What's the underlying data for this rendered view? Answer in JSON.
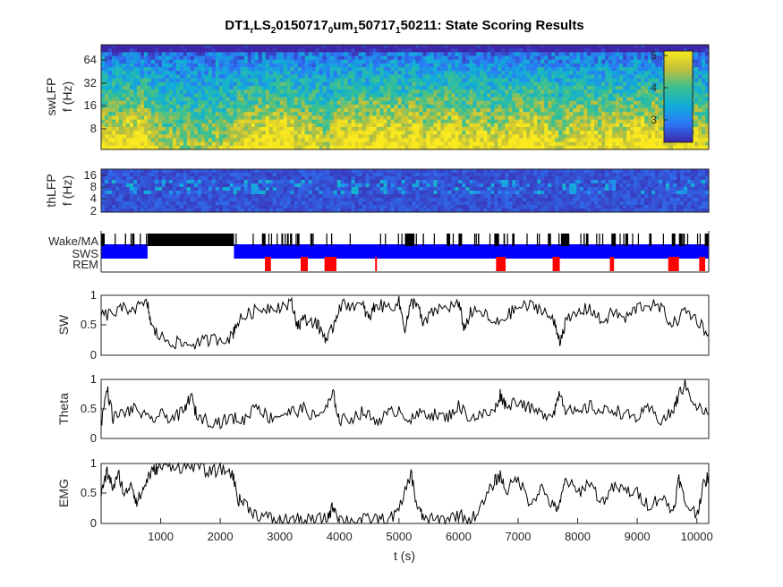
{
  "figure": {
    "title_parts": {
      "p1": "DT1",
      "s1": "r",
      "p2": "LS",
      "s2": "2",
      "p3": "0150717",
      "s3": "0",
      "p4": "um",
      "s4": "1",
      "p5": "50717",
      "s5": "1",
      "p6": "50211: State Scoring Results"
    }
  },
  "panels": {
    "swlfp": {
      "ylabel1": "swLFP",
      "ylabel2": "f (Hz)",
      "yticks": [
        "64",
        "32",
        "16",
        "8"
      ]
    },
    "thlfp": {
      "ylabel1": "thLFP",
      "ylabel2": "f (Hz)",
      "yticks": [
        "16",
        "8",
        "4",
        "2"
      ]
    },
    "states": {
      "labels": [
        "Wake/MA",
        "SWS",
        "REM"
      ]
    },
    "sw": {
      "ylabel": "SW",
      "yticks": [
        "1",
        "0.5",
        "0"
      ]
    },
    "theta": {
      "ylabel": "Theta",
      "yticks": [
        "1",
        "0.5",
        "0"
      ]
    },
    "emg": {
      "ylabel": "EMG",
      "yticks": [
        "1",
        "0.5",
        "0"
      ]
    }
  },
  "colorbar": {
    "ticks": [
      "5",
      "4",
      "3"
    ],
    "range": [
      2.5,
      5.2
    ]
  },
  "chart_data": [
    {
      "type": "heatmap",
      "name": "swLFP spectrogram",
      "ylabel": "swLFP f (Hz)",
      "yscale": "log",
      "yticks": [
        8,
        16,
        32,
        64
      ],
      "xlim": [
        0,
        10200
      ],
      "clim": [
        2.5,
        5.2
      ],
      "colorbar_ticks": [
        3,
        4,
        5
      ],
      "colormap": "parula"
    },
    {
      "type": "heatmap",
      "name": "thLFP spectrogram",
      "ylabel": "thLFP f (Hz)",
      "yscale": "log",
      "yticks": [
        2,
        4,
        8,
        16
      ],
      "xlim": [
        0,
        10200
      ],
      "colormap": "parula"
    },
    {
      "type": "bar",
      "name": "state hypnogram",
      "categories": [
        "Wake/MA",
        "SWS",
        "REM"
      ],
      "colors": {
        "Wake/MA": "#000000",
        "SWS": "#0000ff",
        "REM": "#ff0000"
      },
      "wake_blocks": [
        [
          0,
          60
        ],
        [
          400,
          420
        ],
        [
          520,
          560
        ],
        [
          780,
          2230
        ],
        [
          2700,
          2760
        ],
        [
          3120,
          3150
        ],
        [
          3290,
          3330
        ],
        [
          3860,
          3880
        ],
        [
          5100,
          5260
        ],
        [
          5400,
          5420
        ],
        [
          5800,
          5860
        ],
        [
          6000,
          6060
        ],
        [
          6600,
          6680
        ],
        [
          6900,
          6940
        ],
        [
          7500,
          7540
        ],
        [
          7720,
          7860
        ],
        [
          8140,
          8180
        ],
        [
          8580,
          8640
        ],
        [
          8800,
          8840
        ],
        [
          9200,
          9240
        ],
        [
          9580,
          9640
        ],
        [
          9700,
          9760
        ],
        [
          10140,
          10200
        ]
      ],
      "rem_blocks": [
        [
          2750,
          2850
        ],
        [
          3350,
          3470
        ],
        [
          3750,
          3950
        ],
        [
          4600,
          4630
        ],
        [
          6630,
          6790
        ],
        [
          7580,
          7700
        ],
        [
          8540,
          8610
        ],
        [
          9520,
          9700
        ],
        [
          10040,
          10140
        ]
      ],
      "sws_blocks": [
        [
          0,
          780
        ],
        [
          2230,
          10200
        ]
      ],
      "xlim": [
        0,
        10200
      ]
    },
    {
      "type": "line",
      "name": "SW",
      "ylabel": "SW",
      "xlim": [
        0,
        10200
      ],
      "ylim": [
        0,
        1
      ],
      "x": [
        0,
        200,
        400,
        600,
        780,
        850,
        1000,
        1200,
        1400,
        1600,
        1800,
        2000,
        2200,
        2250,
        2400,
        2600,
        2800,
        3000,
        3200,
        3300,
        3400,
        3600,
        3700,
        3800,
        3900,
        4000,
        4200,
        4400,
        4500,
        4600,
        4800,
        5000,
        5100,
        5200,
        5300,
        5400,
        5600,
        5800,
        6000,
        6100,
        6200,
        6400,
        6600,
        6800,
        7000,
        7200,
        7400,
        7600,
        7700,
        7800,
        8000,
        8200,
        8400,
        8600,
        8800,
        9000,
        9200,
        9400,
        9600,
        9800,
        10000,
        10200
      ],
      "y": [
        0.65,
        0.7,
        0.78,
        0.8,
        0.85,
        0.45,
        0.3,
        0.22,
        0.18,
        0.2,
        0.25,
        0.28,
        0.3,
        0.5,
        0.65,
        0.75,
        0.8,
        0.82,
        0.85,
        0.5,
        0.6,
        0.55,
        0.4,
        0.25,
        0.5,
        0.82,
        0.85,
        0.8,
        0.6,
        0.85,
        0.8,
        0.88,
        0.45,
        0.85,
        0.9,
        0.5,
        0.75,
        0.8,
        0.85,
        0.45,
        0.7,
        0.72,
        0.5,
        0.65,
        0.8,
        0.82,
        0.78,
        0.55,
        0.25,
        0.55,
        0.7,
        0.8,
        0.55,
        0.72,
        0.6,
        0.8,
        0.85,
        0.78,
        0.5,
        0.75,
        0.6,
        0.35
      ]
    },
    {
      "type": "line",
      "name": "Theta",
      "ylabel": "Theta",
      "xlim": [
        0,
        10200
      ],
      "ylim": [
        0,
        1
      ],
      "x": [
        0,
        100,
        200,
        400,
        600,
        800,
        1000,
        1200,
        1400,
        1500,
        1600,
        1800,
        2000,
        2200,
        2400,
        2600,
        2800,
        3000,
        3200,
        3400,
        3600,
        3800,
        3900,
        4000,
        4200,
        4400,
        4600,
        4800,
        5000,
        5200,
        5400,
        5600,
        5800,
        6000,
        6200,
        6400,
        6600,
        6700,
        6800,
        7000,
        7200,
        7400,
        7600,
        7700,
        7800,
        8000,
        8200,
        8400,
        8600,
        8800,
        9000,
        9200,
        9400,
        9600,
        9700,
        9800,
        10000,
        10200
      ],
      "y": [
        0.25,
        0.85,
        0.35,
        0.45,
        0.5,
        0.3,
        0.4,
        0.35,
        0.45,
        0.75,
        0.4,
        0.3,
        0.28,
        0.35,
        0.3,
        0.6,
        0.35,
        0.4,
        0.45,
        0.5,
        0.35,
        0.55,
        0.75,
        0.3,
        0.35,
        0.45,
        0.3,
        0.4,
        0.5,
        0.3,
        0.45,
        0.4,
        0.35,
        0.55,
        0.35,
        0.4,
        0.45,
        0.75,
        0.55,
        0.65,
        0.5,
        0.4,
        0.45,
        0.8,
        0.5,
        0.4,
        0.55,
        0.45,
        0.5,
        0.4,
        0.35,
        0.5,
        0.3,
        0.45,
        0.75,
        0.9,
        0.55,
        0.4
      ]
    },
    {
      "type": "line",
      "name": "EMG",
      "ylabel": "EMG",
      "xlabel": "t (s)",
      "xlim": [
        0,
        10200
      ],
      "ylim": [
        0,
        1
      ],
      "xticks": [
        1000,
        2000,
        3000,
        4000,
        5000,
        6000,
        7000,
        8000,
        9000,
        10000
      ],
      "x": [
        0,
        100,
        200,
        300,
        400,
        500,
        600,
        700,
        800,
        900,
        1000,
        1200,
        1400,
        1600,
        1800,
        2000,
        2200,
        2300,
        2400,
        2600,
        2800,
        3000,
        3200,
        3400,
        3600,
        3800,
        3900,
        4000,
        4200,
        4400,
        4600,
        4800,
        5000,
        5200,
        5300,
        5400,
        5600,
        5800,
        6000,
        6200,
        6400,
        6600,
        6700,
        6800,
        7000,
        7200,
        7400,
        7600,
        7700,
        7800,
        8000,
        8200,
        8400,
        8600,
        8800,
        9000,
        9200,
        9400,
        9600,
        9700,
        9800,
        10000,
        10100,
        10200
      ],
      "y": [
        0.5,
        0.85,
        0.6,
        0.8,
        0.45,
        0.7,
        0.35,
        0.55,
        0.8,
        0.9,
        0.95,
        0.98,
        0.92,
        0.98,
        0.85,
        0.9,
        0.85,
        0.4,
        0.35,
        0.15,
        0.1,
        0.05,
        0.08,
        0.05,
        0.06,
        0.1,
        0.3,
        0.08,
        0.05,
        0.06,
        0.08,
        0.05,
        0.2,
        0.85,
        0.3,
        0.1,
        0.05,
        0.08,
        0.15,
        0.05,
        0.3,
        0.7,
        0.8,
        0.55,
        0.75,
        0.35,
        0.6,
        0.25,
        0.3,
        0.75,
        0.5,
        0.7,
        0.35,
        0.6,
        0.55,
        0.5,
        0.3,
        0.45,
        0.2,
        0.75,
        0.35,
        0.15,
        0.6,
        0.8
      ]
    }
  ]
}
